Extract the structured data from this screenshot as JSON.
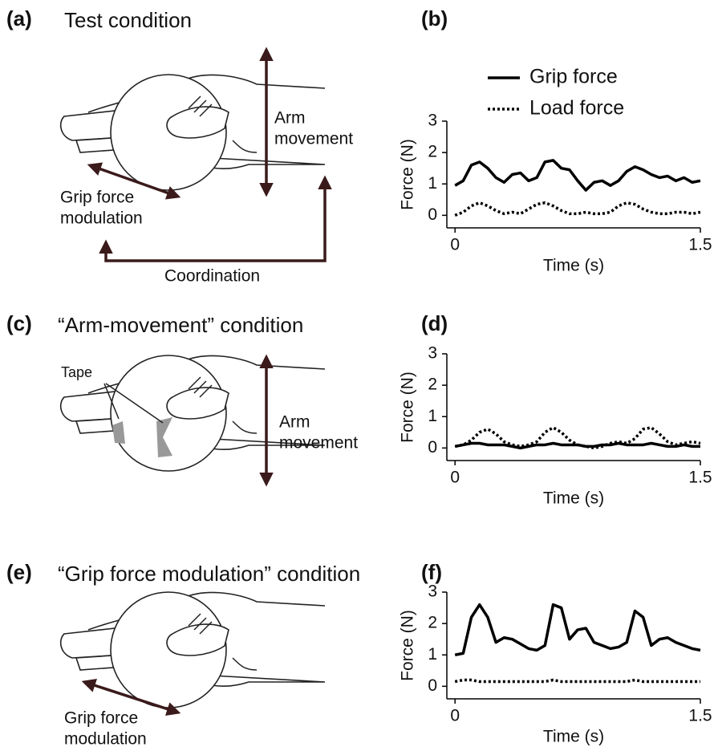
{
  "panels": [
    {
      "label": "(a)",
      "title": "Test condition"
    },
    {
      "label": "(b)"
    },
    {
      "label": "(c)",
      "title": "“Arm-movement” condition"
    },
    {
      "label": "(d)"
    },
    {
      "label": "(e)",
      "title": "“Grip force modulation” condition"
    },
    {
      "label": "(f)"
    }
  ],
  "diagrams": {
    "a": {
      "arm": [
        "Arm",
        "movement"
      ],
      "grip": [
        "Grip force",
        "modulation"
      ],
      "coordination": "Coordination"
    },
    "c": {
      "tape": "Tape",
      "arm": [
        "Arm",
        "movement"
      ]
    },
    "e": {
      "grip": [
        "Grip force",
        "modulation"
      ]
    }
  },
  "chart_data": [
    {
      "type": "line",
      "xlabel": "Time (s)",
      "ylabel": "Force (N)",
      "legend": true,
      "x": [
        0,
        0.05,
        0.1,
        0.15,
        0.2,
        0.25,
        0.3,
        0.35,
        0.4,
        0.45,
        0.5,
        0.55,
        0.6,
        0.65,
        0.7,
        0.75,
        0.8,
        0.85,
        0.9,
        0.95,
        1,
        1.05,
        1.1,
        1.15,
        1.2,
        1.25,
        1.3,
        1.35,
        1.4,
        1.45,
        1.5
      ],
      "xlim": [
        -0.05,
        1.5
      ],
      "xticks": [
        0,
        1.5
      ],
      "ylim": [
        -0.4,
        3
      ],
      "yticks": [
        0,
        1,
        2,
        3
      ],
      "series": [
        {
          "name": "Grip force",
          "color": "#000000",
          "style": "solid",
          "values": [
            0.95,
            1.1,
            1.6,
            1.7,
            1.5,
            1.2,
            1.05,
            1.3,
            1.35,
            1.1,
            1.2,
            1.7,
            1.75,
            1.5,
            1.45,
            1.1,
            0.8,
            1.05,
            1.1,
            0.95,
            1.1,
            1.4,
            1.55,
            1.45,
            1.3,
            1.2,
            1.25,
            1.1,
            1.2,
            1.05,
            1.1
          ]
        },
        {
          "name": "Load force",
          "color": "#000000",
          "style": "dotted",
          "values": [
            0,
            0.1,
            0.3,
            0.4,
            0.3,
            0.15,
            0.05,
            0.1,
            0.05,
            0.2,
            0.35,
            0.4,
            0.3,
            0.15,
            0.05,
            0.05,
            0.1,
            0.05,
            0.05,
            0.1,
            0.3,
            0.4,
            0.35,
            0.2,
            0.1,
            0.05,
            0.05,
            0.1,
            0.1,
            0.05,
            0.1
          ]
        }
      ]
    },
    {
      "type": "line",
      "xlabel": "Time (s)",
      "ylabel": "Force (N)",
      "legend": false,
      "x": [
        0,
        0.05,
        0.1,
        0.15,
        0.2,
        0.25,
        0.3,
        0.35,
        0.4,
        0.45,
        0.5,
        0.55,
        0.6,
        0.65,
        0.7,
        0.75,
        0.8,
        0.85,
        0.9,
        0.95,
        1,
        1.05,
        1.1,
        1.15,
        1.2,
        1.25,
        1.3,
        1.35,
        1.4,
        1.45,
        1.5
      ],
      "xlim": [
        -0.05,
        1.5
      ],
      "xticks": [
        0,
        1.5
      ],
      "ylim": [
        -0.4,
        3
      ],
      "yticks": [
        0,
        1,
        2,
        3
      ],
      "series": [
        {
          "color": "#000000",
          "style": "solid",
          "values": [
            0.05,
            0.1,
            0.15,
            0.15,
            0.1,
            0.1,
            0.1,
            0.05,
            0,
            0.05,
            0.1,
            0.1,
            0.15,
            0.1,
            0.1,
            0.1,
            0.05,
            0.05,
            0.1,
            0.1,
            0.15,
            0.1,
            0.1,
            0.1,
            0.15,
            0.1,
            0.05,
            0.05,
            0.1,
            0.05,
            0.05
          ]
        },
        {
          "color": "#000000",
          "style": "dotted",
          "values": [
            0.05,
            0.1,
            0.25,
            0.5,
            0.6,
            0.45,
            0.2,
            0.1,
            0.05,
            0.1,
            0.2,
            0.5,
            0.65,
            0.5,
            0.25,
            0.1,
            0.05,
            0,
            0.05,
            0.15,
            0.2,
            0.15,
            0.3,
            0.6,
            0.65,
            0.45,
            0.2,
            0.1,
            0.15,
            0.2,
            0.15
          ]
        }
      ]
    },
    {
      "type": "line",
      "xlabel": "Time (s)",
      "ylabel": "Force (N)",
      "legend": false,
      "x": [
        0,
        0.05,
        0.1,
        0.15,
        0.2,
        0.25,
        0.3,
        0.35,
        0.4,
        0.45,
        0.5,
        0.55,
        0.6,
        0.65,
        0.7,
        0.75,
        0.8,
        0.85,
        0.9,
        0.95,
        1,
        1.05,
        1.1,
        1.15,
        1.2,
        1.25,
        1.3,
        1.35,
        1.4,
        1.45,
        1.5
      ],
      "xlim": [
        -0.05,
        1.5
      ],
      "xticks": [
        0,
        1.5
      ],
      "ylim": [
        -0.4,
        3
      ],
      "yticks": [
        0,
        1,
        2,
        3
      ],
      "series": [
        {
          "color": "#000000",
          "style": "solid",
          "values": [
            1,
            1.05,
            2.2,
            2.6,
            2.2,
            1.4,
            1.55,
            1.5,
            1.35,
            1.2,
            1.15,
            1.3,
            2.6,
            2.5,
            1.5,
            1.8,
            1.85,
            1.4,
            1.3,
            1.2,
            1.25,
            1.4,
            2.4,
            2.2,
            1.3,
            1.5,
            1.55,
            1.4,
            1.3,
            1.2,
            1.15
          ]
        },
        {
          "color": "#000000",
          "style": "dotted",
          "values": [
            0.15,
            0.2,
            0.2,
            0.15,
            0.15,
            0.15,
            0.15,
            0.15,
            0.15,
            0.15,
            0.15,
            0.15,
            0.2,
            0.15,
            0.15,
            0.15,
            0.15,
            0.15,
            0.15,
            0.15,
            0.15,
            0.15,
            0.2,
            0.15,
            0.15,
            0.15,
            0.15,
            0.15,
            0.15,
            0.15,
            0.15
          ]
        }
      ]
    }
  ]
}
